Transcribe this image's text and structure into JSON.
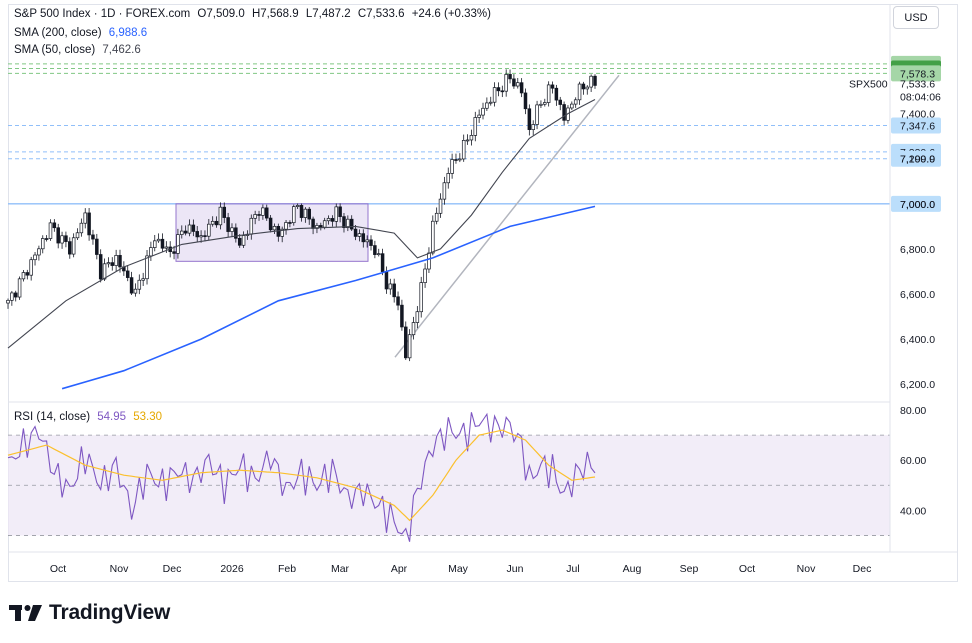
{
  "header": {
    "symbol": "S&P 500 Index · 1D · FOREX.com",
    "open_label": "O",
    "open": "7,509.0",
    "high_label": "H",
    "high": "7,568.9",
    "low_label": "L",
    "low": "7,487.2",
    "close_label": "C",
    "close": "7,533.6",
    "change": "+24.6 (+0.33%)",
    "sma200_label": "SMA (200, close)",
    "sma200_value": "6,988.6",
    "sma50_label": "SMA (50, close)",
    "sma50_value": "7,462.6",
    "rsi_label": "RSI (14, close)",
    "rsi_value": "54.95",
    "rsi_ma_value": "53.30"
  },
  "currency": "USD",
  "brand": {
    "name": "TradingView"
  },
  "colors": {
    "up": "#131722",
    "down": "#131722",
    "sma200": "#2962ff",
    "sma50": "#434651",
    "rsi": "#7e57c2",
    "rsi_ma": "#fbc02d",
    "support": "#90bff9",
    "resistance": "#81c784",
    "range_box": "#9575cd",
    "trendline": "#b2b5be"
  },
  "chart_data": [
    {
      "type": "candlestick",
      "title": "S&P 500 Index · 1D · FOREX.com",
      "x_ticks": [
        "Oct",
        "Nov",
        "Dec",
        "2026",
        "Feb",
        "Mar",
        "Apr",
        "May",
        "Jun",
        "Jul",
        "Aug",
        "Sep",
        "Oct",
        "Nov",
        "Dec"
      ],
      "y_ticks": [
        6200,
        6400,
        6600,
        6800,
        7000,
        7200,
        7400
      ],
      "ylim": [
        6130,
        7660
      ],
      "current_price_label": "SPX500",
      "current_price": "7,533.6",
      "countdown": "08:04:06",
      "price_levels": [
        {
          "value": 7620.8,
          "label": "7,620.8",
          "kind": "resistance"
        },
        {
          "value": 7600.0,
          "label": "7,600.0",
          "kind": "resistance"
        },
        {
          "value": 7578.3,
          "label": "7,578.3",
          "kind": "resistance"
        },
        {
          "value": 7347.6,
          "label": "7,347.6",
          "kind": "support"
        },
        {
          "value": 7230.6,
          "label": "7,230.6",
          "kind": "support"
        },
        {
          "value": 7199.9,
          "label": "7,199.9",
          "kind": "support"
        },
        {
          "value": 7000.0,
          "label": "7,000.0",
          "kind": "support"
        }
      ],
      "range_box": {
        "from": "Dec",
        "to": "Mar",
        "top": 7000,
        "bottom": 6745
      },
      "trendline": {
        "from": [
          "Apr",
          6320
        ],
        "to": [
          "Jul",
          7570
        ]
      },
      "anchors": [
        [
          0,
          6560
        ],
        [
          6,
          6740
        ],
        [
          11,
          6900
        ],
        [
          16,
          6800
        ],
        [
          20,
          6950
        ],
        [
          24,
          6700
        ],
        [
          28,
          6760
        ],
        [
          33,
          6600
        ],
        [
          38,
          6850
        ],
        [
          42,
          6780
        ],
        [
          46,
          6900
        ],
        [
          50,
          6850
        ],
        [
          55,
          6960
        ],
        [
          60,
          6820
        ],
        [
          65,
          6980
        ],
        [
          70,
          6860
        ],
        [
          75,
          6990
        ],
        [
          80,
          6890
        ],
        [
          85,
          6960
        ],
        [
          90,
          6870
        ],
        [
          95,
          6800
        ],
        [
          98,
          6650
        ],
        [
          101,
          6560
        ],
        [
          103,
          6330
        ],
        [
          107,
          6620
        ],
        [
          110,
          6900
        ],
        [
          114,
          7150
        ],
        [
          118,
          7250
        ],
        [
          122,
          7400
        ],
        [
          126,
          7490
        ],
        [
          130,
          7560
        ],
        [
          133,
          7500
        ],
        [
          135,
          7330
        ],
        [
          138,
          7450
        ],
        [
          141,
          7520
        ],
        [
          144,
          7380
        ],
        [
          147,
          7480
        ],
        [
          150,
          7540
        ],
        [
          152,
          7533.6
        ]
      ],
      "series": [
        {
          "name": "SMA (200, close)",
          "points": [
            [
              14,
              6180
            ],
            [
              30,
              6260
            ],
            [
              50,
              6400
            ],
            [
              70,
              6570
            ],
            [
              90,
              6660
            ],
            [
              110,
              6760
            ],
            [
              130,
              6900
            ],
            [
              152,
              6988.6
            ]
          ]
        },
        {
          "name": "SMA (50, close)",
          "points": [
            [
              0,
              6360
            ],
            [
              15,
              6570
            ],
            [
              30,
              6720
            ],
            [
              45,
              6820
            ],
            [
              60,
              6860
            ],
            [
              75,
              6890
            ],
            [
              90,
              6900
            ],
            [
              100,
              6870
            ],
            [
              106,
              6760
            ],
            [
              112,
              6800
            ],
            [
              120,
              6950
            ],
            [
              128,
              7140
            ],
            [
              135,
              7290
            ],
            [
              145,
              7400
            ],
            [
              152,
              7462.6
            ]
          ]
        }
      ]
    },
    {
      "type": "line",
      "title": "RSI (14, close)",
      "y_ticks": [
        40,
        60,
        80
      ],
      "ylim": [
        25,
        82
      ],
      "bands": [
        30,
        50,
        70
      ],
      "series": [
        {
          "name": "RSI",
          "points": [
            [
              0,
              58
            ],
            [
              4,
              66
            ],
            [
              8,
              72
            ],
            [
              12,
              55
            ],
            [
              16,
              48
            ],
            [
              20,
              62
            ],
            [
              24,
              50
            ],
            [
              28,
              58
            ],
            [
              32,
              40
            ],
            [
              36,
              55
            ],
            [
              40,
              50
            ],
            [
              44,
              56
            ],
            [
              48,
              52
            ],
            [
              52,
              60
            ],
            [
              56,
              50
            ],
            [
              60,
              58
            ],
            [
              64,
              52
            ],
            [
              68,
              62
            ],
            [
              72,
              48
            ],
            [
              76,
              55
            ],
            [
              80,
              50
            ],
            [
              84,
              56
            ],
            [
              88,
              45
            ],
            [
              92,
              48
            ],
            [
              96,
              42
            ],
            [
              100,
              36
            ],
            [
              103,
              28
            ],
            [
              106,
              48
            ],
            [
              110,
              66
            ],
            [
              114,
              72
            ],
            [
              118,
              70
            ],
            [
              122,
              76
            ],
            [
              126,
              73
            ],
            [
              130,
              74
            ],
            [
              133,
              66
            ],
            [
              135,
              52
            ],
            [
              138,
              58
            ],
            [
              141,
              56
            ],
            [
              144,
              46
            ],
            [
              147,
              54
            ],
            [
              150,
              59
            ],
            [
              152,
              54.95
            ]
          ]
        },
        {
          "name": "RSI MA",
          "points": [
            [
              0,
              62
            ],
            [
              10,
              66
            ],
            [
              20,
              58
            ],
            [
              30,
              54
            ],
            [
              40,
              52
            ],
            [
              50,
              55
            ],
            [
              60,
              56
            ],
            [
              70,
              55
            ],
            [
              80,
              53
            ],
            [
              90,
              49
            ],
            [
              100,
              42
            ],
            [
              104,
              36
            ],
            [
              110,
              46
            ],
            [
              116,
              60
            ],
            [
              122,
              70
            ],
            [
              128,
              72
            ],
            [
              134,
              68
            ],
            [
              140,
              58
            ],
            [
              146,
              52
            ],
            [
              152,
              53.3
            ]
          ]
        }
      ]
    }
  ]
}
